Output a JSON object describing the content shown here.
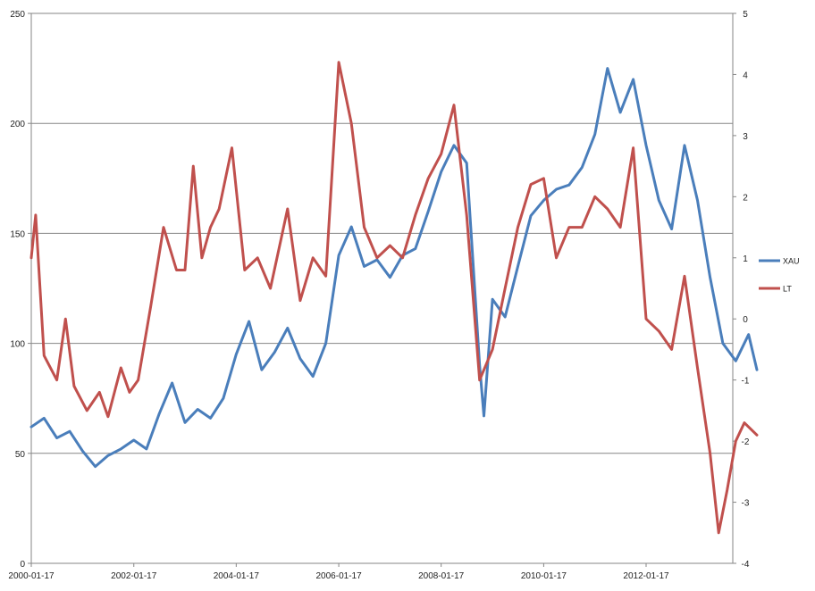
{
  "chart_data": {
    "type": "line",
    "x_type": "date",
    "x_ticks": [
      "2000-01-17",
      "2002-01-17",
      "2004-01-17",
      "2006-01-17",
      "2008-01-17",
      "2010-01-17",
      "2012-01-17"
    ],
    "y_left": {
      "min": 0,
      "max": 250,
      "ticks": [
        0,
        50,
        100,
        150,
        200,
        250
      ]
    },
    "y_right": {
      "min": -4,
      "max": 5,
      "ticks": [
        -4,
        -3,
        -2,
        -1,
        0,
        1,
        2,
        3,
        4,
        5
      ]
    },
    "grid": "horizontal major lines on left axis",
    "legend_position": "right",
    "series": [
      {
        "name": "XAU",
        "axis": "left",
        "color": "#4a7ebb",
        "points": [
          [
            "2000-01-17",
            62
          ],
          [
            "2000-04-17",
            66
          ],
          [
            "2000-07-17",
            57
          ],
          [
            "2000-10-17",
            60
          ],
          [
            "2001-01-17",
            51
          ],
          [
            "2001-04-17",
            44
          ],
          [
            "2001-07-17",
            49
          ],
          [
            "2001-10-17",
            52
          ],
          [
            "2002-01-17",
            56
          ],
          [
            "2002-04-17",
            52
          ],
          [
            "2002-07-17",
            68
          ],
          [
            "2002-10-17",
            82
          ],
          [
            "2003-01-17",
            64
          ],
          [
            "2003-04-17",
            70
          ],
          [
            "2003-07-17",
            66
          ],
          [
            "2003-10-17",
            75
          ],
          [
            "2004-01-17",
            95
          ],
          [
            "2004-04-17",
            110
          ],
          [
            "2004-07-17",
            88
          ],
          [
            "2004-10-17",
            96
          ],
          [
            "2005-01-17",
            107
          ],
          [
            "2005-04-17",
            93
          ],
          [
            "2005-07-17",
            85
          ],
          [
            "2005-10-17",
            100
          ],
          [
            "2006-01-17",
            140
          ],
          [
            "2006-04-17",
            153
          ],
          [
            "2006-07-17",
            135
          ],
          [
            "2006-10-17",
            138
          ],
          [
            "2007-01-17",
            130
          ],
          [
            "2007-04-17",
            140
          ],
          [
            "2007-07-17",
            143
          ],
          [
            "2007-10-17",
            160
          ],
          [
            "2008-01-17",
            178
          ],
          [
            "2008-04-17",
            190
          ],
          [
            "2008-07-17",
            182
          ],
          [
            "2008-10-17",
            90
          ],
          [
            "2008-11-17",
            67
          ],
          [
            "2009-01-17",
            120
          ],
          [
            "2009-04-17",
            112
          ],
          [
            "2009-07-17",
            135
          ],
          [
            "2009-10-17",
            158
          ],
          [
            "2010-01-17",
            165
          ],
          [
            "2010-04-17",
            170
          ],
          [
            "2010-07-17",
            172
          ],
          [
            "2010-10-17",
            180
          ],
          [
            "2011-01-17",
            195
          ],
          [
            "2011-04-17",
            225
          ],
          [
            "2011-07-17",
            205
          ],
          [
            "2011-10-17",
            220
          ],
          [
            "2012-01-17",
            190
          ],
          [
            "2012-04-17",
            165
          ],
          [
            "2012-07-17",
            152
          ],
          [
            "2012-10-17",
            190
          ],
          [
            "2013-01-17",
            165
          ],
          [
            "2013-04-17",
            130
          ],
          [
            "2013-07-17",
            100
          ],
          [
            "2013-10-17",
            92
          ],
          [
            "2014-01-17",
            104
          ],
          [
            "2014-03-17",
            88
          ]
        ]
      },
      {
        "name": "LT",
        "axis": "right",
        "color": "#c0504d",
        "points": [
          [
            "2000-01-17",
            1.0
          ],
          [
            "2000-02-17",
            1.7
          ],
          [
            "2000-04-17",
            -0.6
          ],
          [
            "2000-07-17",
            -1.0
          ],
          [
            "2000-09-17",
            0.0
          ],
          [
            "2000-11-17",
            -1.1
          ],
          [
            "2001-02-17",
            -1.5
          ],
          [
            "2001-05-17",
            -1.2
          ],
          [
            "2001-07-17",
            -1.6
          ],
          [
            "2001-10-17",
            -0.8
          ],
          [
            "2001-12-17",
            -1.2
          ],
          [
            "2002-02-17",
            -1.0
          ],
          [
            "2002-05-17",
            0.2
          ],
          [
            "2002-08-17",
            1.5
          ],
          [
            "2002-11-17",
            0.8
          ],
          [
            "2003-01-17",
            0.8
          ],
          [
            "2003-03-17",
            2.5
          ],
          [
            "2003-05-17",
            1.0
          ],
          [
            "2003-07-17",
            1.5
          ],
          [
            "2003-09-17",
            1.8
          ],
          [
            "2003-12-17",
            2.8
          ],
          [
            "2004-03-17",
            0.8
          ],
          [
            "2004-06-17",
            1.0
          ],
          [
            "2004-09-17",
            0.5
          ],
          [
            "2005-01-17",
            1.8
          ],
          [
            "2005-04-17",
            0.3
          ],
          [
            "2005-07-17",
            1.0
          ],
          [
            "2005-10-17",
            0.7
          ],
          [
            "2006-01-17",
            4.2
          ],
          [
            "2006-04-17",
            3.2
          ],
          [
            "2006-07-17",
            1.5
          ],
          [
            "2006-10-17",
            1.0
          ],
          [
            "2007-01-17",
            1.2
          ],
          [
            "2007-04-17",
            1.0
          ],
          [
            "2007-07-17",
            1.7
          ],
          [
            "2007-10-17",
            2.3
          ],
          [
            "2008-01-17",
            2.7
          ],
          [
            "2008-04-17",
            3.5
          ],
          [
            "2008-07-17",
            1.7
          ],
          [
            "2008-10-17",
            -1.0
          ],
          [
            "2009-01-17",
            -0.5
          ],
          [
            "2009-04-17",
            0.5
          ],
          [
            "2009-07-17",
            1.5
          ],
          [
            "2009-10-17",
            2.2
          ],
          [
            "2010-01-17",
            2.3
          ],
          [
            "2010-04-17",
            1.0
          ],
          [
            "2010-07-17",
            1.5
          ],
          [
            "2010-10-17",
            1.5
          ],
          [
            "2011-01-17",
            2.0
          ],
          [
            "2011-04-17",
            1.8
          ],
          [
            "2011-07-17",
            1.5
          ],
          [
            "2011-10-17",
            2.8
          ],
          [
            "2012-01-17",
            0.0
          ],
          [
            "2012-04-17",
            -0.2
          ],
          [
            "2012-07-17",
            -0.5
          ],
          [
            "2012-10-17",
            0.7
          ],
          [
            "2013-01-17",
            -0.8
          ],
          [
            "2013-04-17",
            -2.2
          ],
          [
            "2013-06-17",
            -3.5
          ],
          [
            "2013-08-17",
            -2.8
          ],
          [
            "2013-10-17",
            -2.0
          ],
          [
            "2013-12-17",
            -1.7
          ],
          [
            "2014-03-17",
            -1.9
          ]
        ]
      }
    ]
  }
}
